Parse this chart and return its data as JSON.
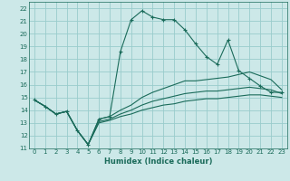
{
  "xlabel": "Humidex (Indice chaleur)",
  "background_color": "#cce8e8",
  "grid_color": "#99cccc",
  "line_color": "#1a6b5a",
  "xlim": [
    -0.5,
    23.5
  ],
  "ylim": [
    11,
    22.5
  ],
  "xticks": [
    0,
    1,
    2,
    3,
    4,
    5,
    6,
    7,
    8,
    9,
    10,
    11,
    12,
    13,
    14,
    15,
    16,
    17,
    18,
    19,
    20,
    21,
    22,
    23
  ],
  "yticks": [
    11,
    12,
    13,
    14,
    15,
    16,
    17,
    18,
    19,
    20,
    21,
    22
  ],
  "series": [
    {
      "y": [
        14.8,
        14.3,
        13.7,
        13.9,
        12.4,
        11.3,
        13.3,
        13.5,
        18.6,
        21.1,
        21.8,
        21.3,
        21.1,
        21.1,
        20.3,
        19.2,
        18.2,
        17.6,
        19.5,
        17.1,
        16.5,
        15.9,
        15.4,
        15.4
      ],
      "marker": "+"
    },
    {
      "y": [
        14.8,
        14.3,
        13.7,
        13.9,
        12.4,
        11.3,
        13.3,
        13.5,
        14.0,
        14.4,
        15.0,
        15.4,
        15.7,
        16.0,
        16.3,
        16.3,
        16.4,
        16.5,
        16.6,
        16.8,
        17.0,
        16.7,
        16.4,
        15.6
      ],
      "marker": null
    },
    {
      "y": [
        14.8,
        14.3,
        13.7,
        13.9,
        12.4,
        11.3,
        13.1,
        13.3,
        13.7,
        14.0,
        14.4,
        14.7,
        14.9,
        15.1,
        15.3,
        15.4,
        15.5,
        15.5,
        15.6,
        15.7,
        15.8,
        15.7,
        15.6,
        15.3
      ],
      "marker": null
    },
    {
      "y": [
        14.8,
        14.3,
        13.7,
        13.9,
        12.4,
        11.3,
        13.0,
        13.2,
        13.5,
        13.7,
        14.0,
        14.2,
        14.4,
        14.5,
        14.7,
        14.8,
        14.9,
        14.9,
        15.0,
        15.1,
        15.2,
        15.2,
        15.1,
        15.0
      ],
      "marker": null
    }
  ]
}
